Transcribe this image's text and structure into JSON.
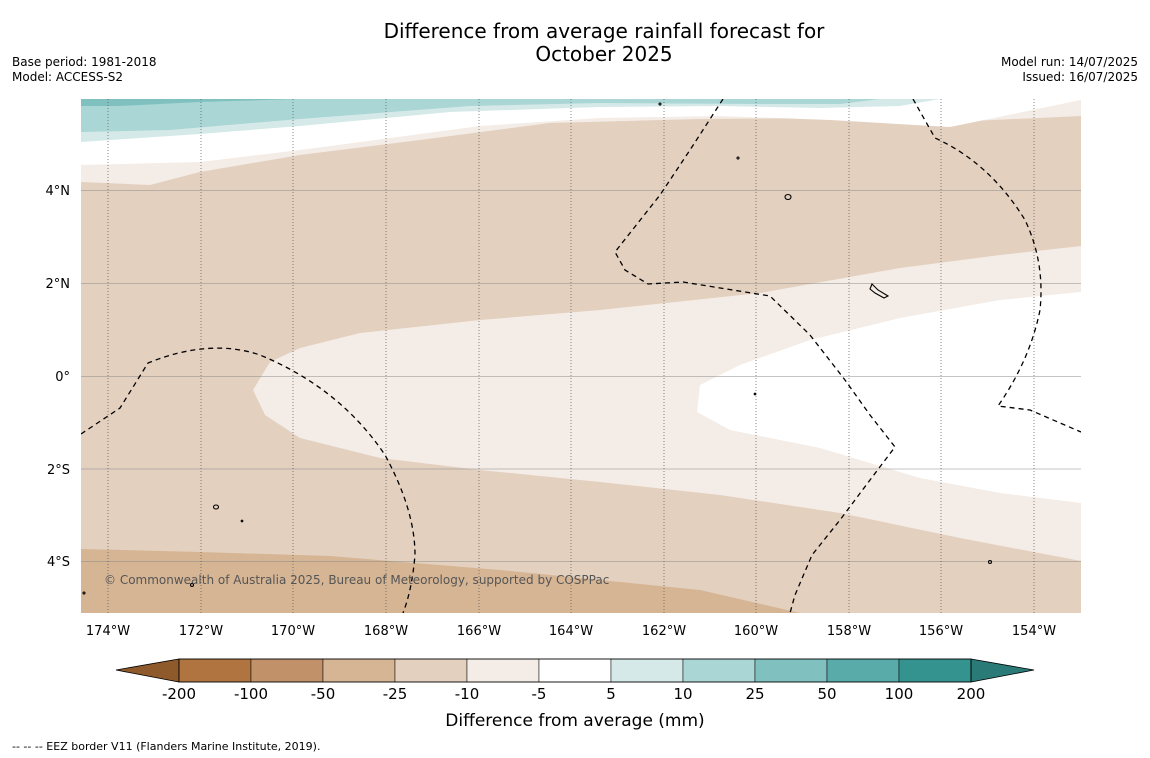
{
  "title": {
    "line1": "Difference from average rainfall forecast for",
    "line2": "October 2025"
  },
  "info_left": {
    "base_period": "Base period: 1981-2018",
    "model": "Model: ACCESS-S2"
  },
  "info_right": {
    "model_run": "Model run: 14/07/2025",
    "issued": "Issued: 16/07/2025"
  },
  "map": {
    "lat_labels": [
      "4°N",
      "2°N",
      "0°",
      "2°S",
      "4°S"
    ],
    "lat_values": [
      4,
      2,
      0,
      -2,
      -4
    ],
    "lon_labels": [
      "174°W",
      "172°W",
      "170°W",
      "168°W",
      "166°W",
      "164°W",
      "162°W",
      "160°W",
      "158°W",
      "156°W",
      "154°W"
    ],
    "lon_values": [
      -174,
      -172,
      -170,
      -168,
      -166,
      -164,
      -162,
      -160,
      -158,
      -156,
      -154
    ],
    "lat_range": [
      -5.1,
      6.0
    ],
    "lon_range": [
      -174.6,
      -153.0
    ],
    "copyright": "© Commonwealth of Australia 2025, Bureau of Meteorology, supported by COSPPac"
  },
  "colorbar": {
    "title": "Difference from average (mm)",
    "tick_labels": [
      "-200",
      "-100",
      "-50",
      "-25",
      "-10",
      "-5",
      "5",
      "10",
      "25",
      "50",
      "100",
      "200"
    ],
    "colors": [
      "#8e5a2c",
      "#af7440",
      "#c1916a",
      "#d6b594",
      "#e3d0bf",
      "#f4ece6",
      "#ffffff",
      "#d5eae8",
      "#abd6d6",
      "#80c1bf",
      "#58aba9",
      "#35938f",
      "#2a7a77"
    ]
  },
  "colors": {
    "dry_moderate": "#d6b594",
    "dry_light": "#e3d0bf",
    "dry_slight": "#f4ece6",
    "neutral": "#ffffff",
    "wet_slight": "#d5eae8",
    "wet_light": "#abd6d6",
    "wet_moderate": "#80c1bf"
  },
  "footnote": "--  --  -- EEZ border V11 (Flanders Marine Institute, 2019)."
}
